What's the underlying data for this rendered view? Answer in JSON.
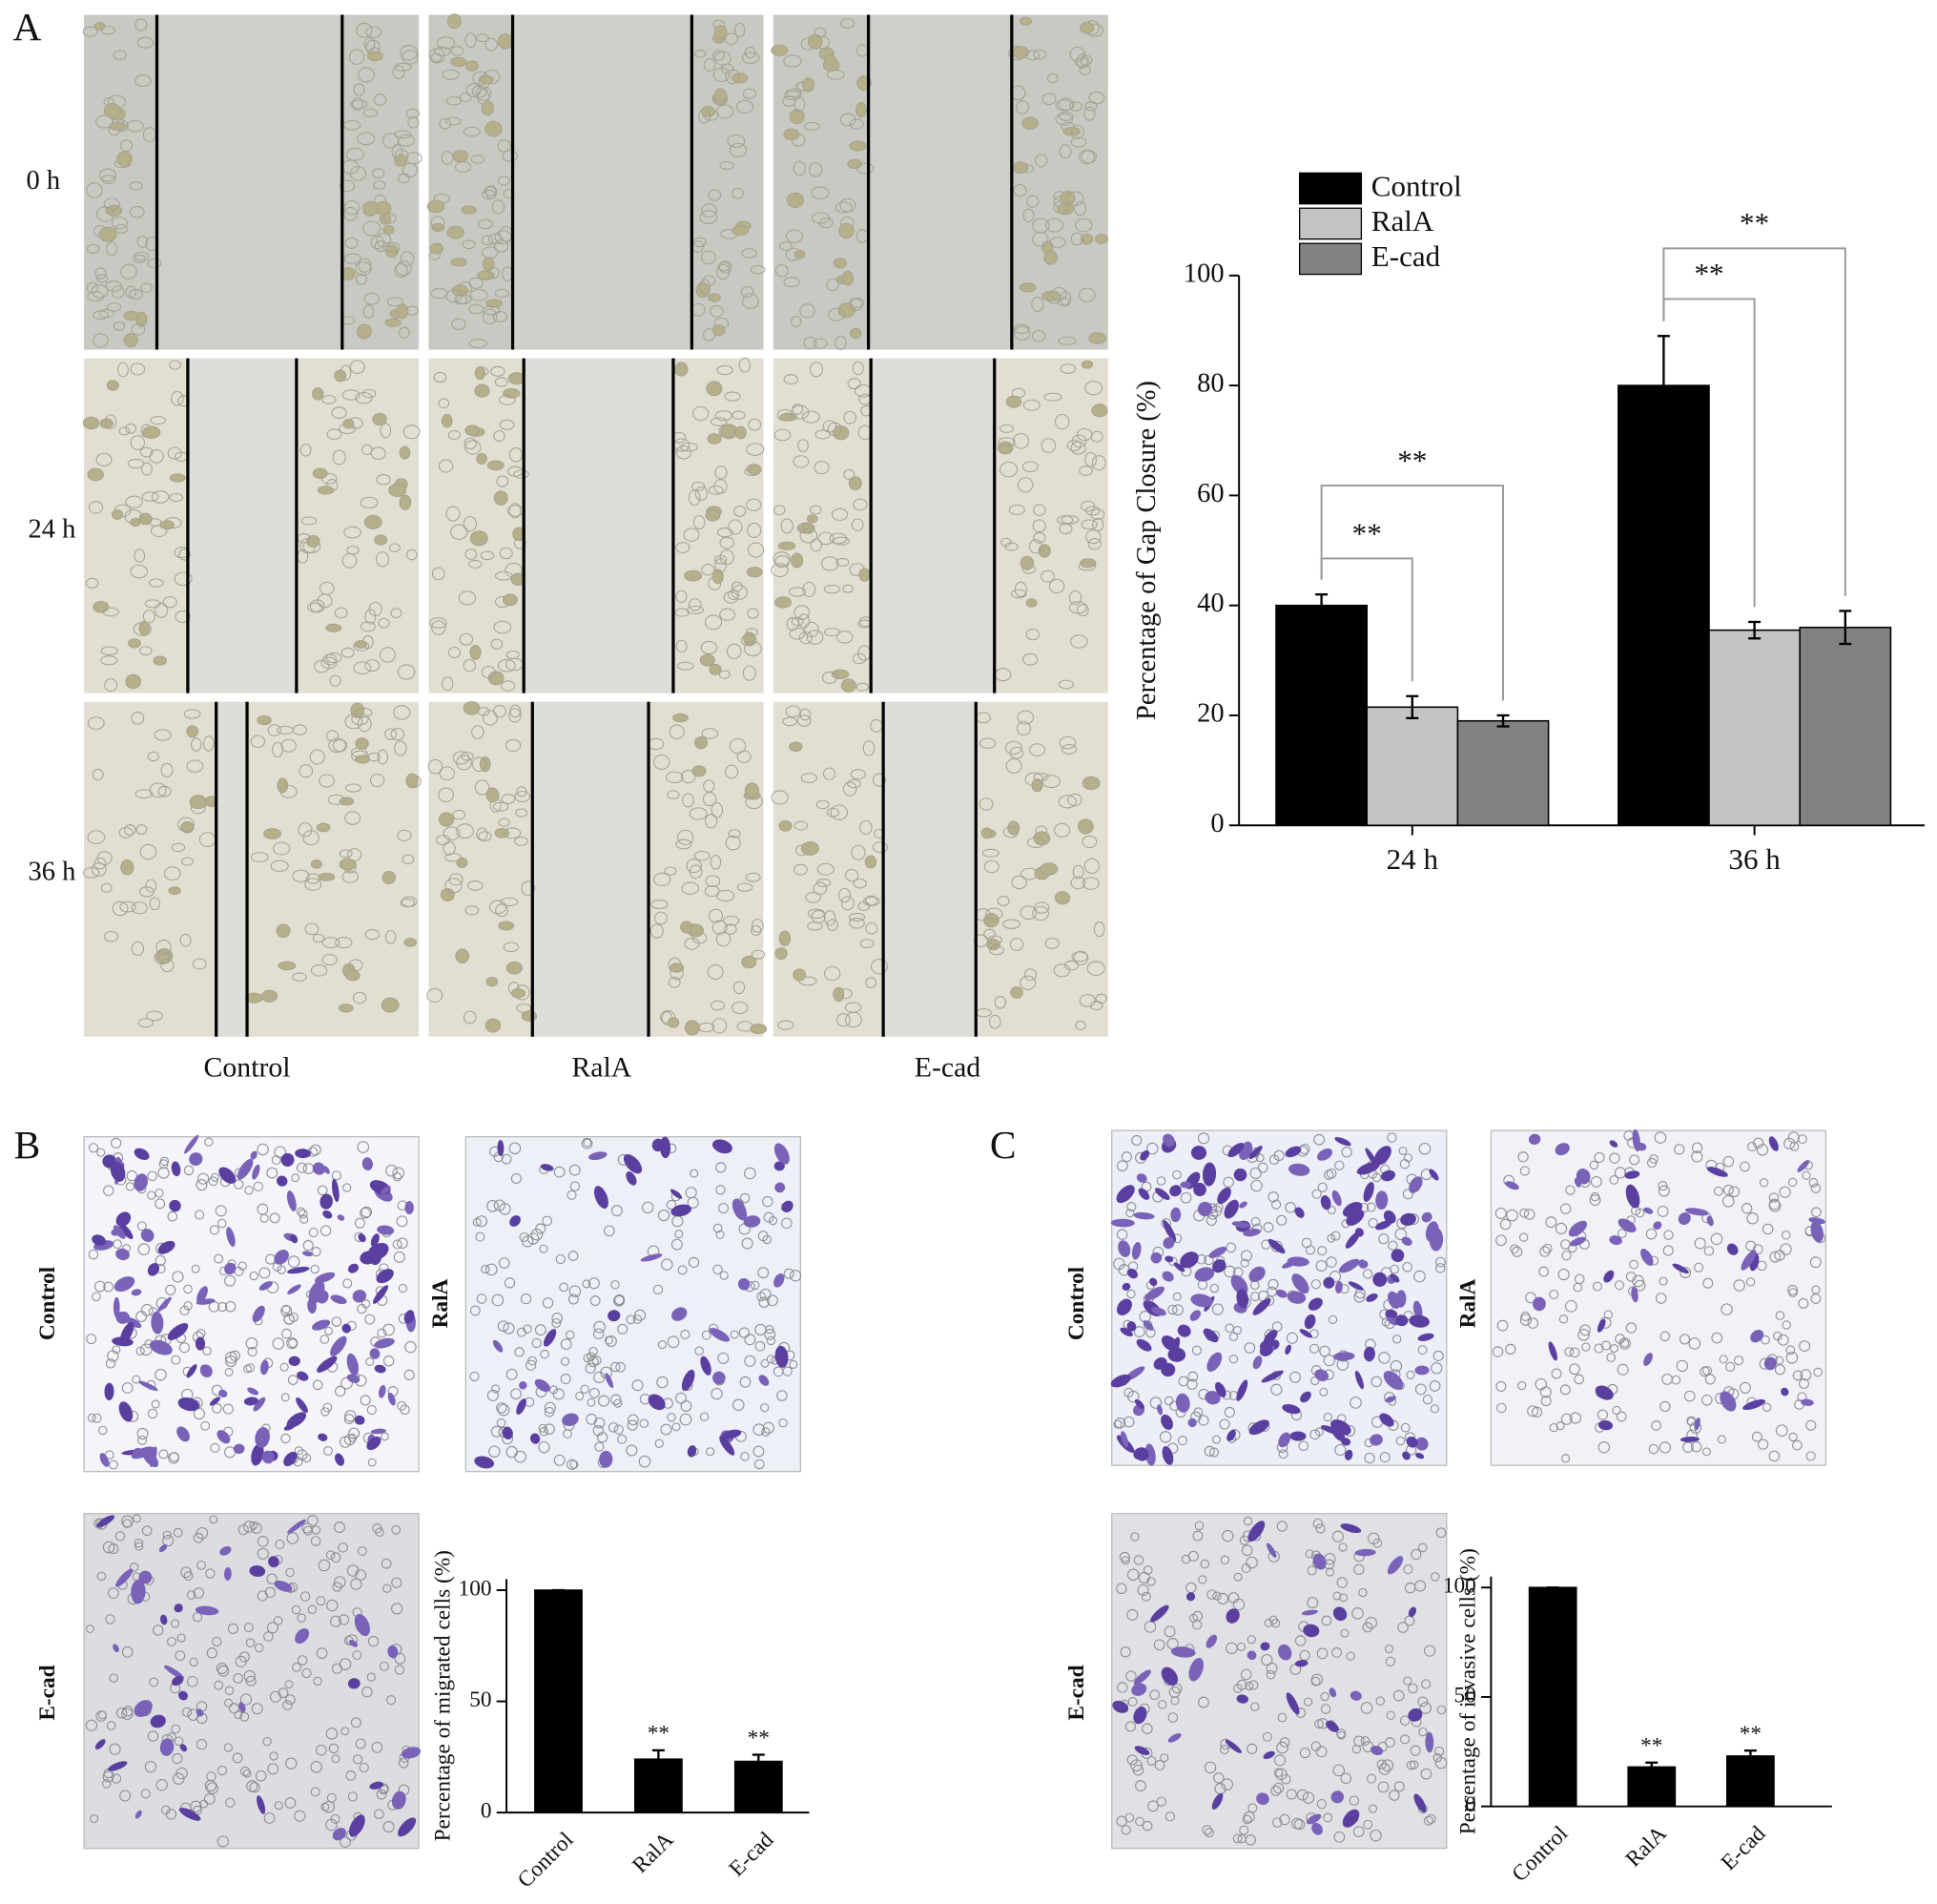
{
  "panel_labels": [
    "A",
    "B",
    "C"
  ],
  "panel_a": {
    "row_labels": [
      "0 h",
      "24 h",
      "36 h"
    ],
    "column_labels": [
      "Control",
      "RalA",
      "E-cad"
    ]
  },
  "panel_b": {
    "image_labels": [
      "Control",
      "RalA",
      "E-cad"
    ]
  },
  "panel_c": {
    "image_labels": [
      "Control",
      "RalA",
      "E-cad"
    ]
  },
  "chart_data": [
    {
      "type": "bar",
      "ylabel": "Percentage of Gap Closure (%)",
      "categories": [
        "24 h",
        "36 h"
      ],
      "series": [
        {
          "name": "Control",
          "color": "#000000",
          "values": [
            40,
            80
          ],
          "errors": [
            2,
            9
          ]
        },
        {
          "name": "RalA",
          "color": "#c4c4c4",
          "values": [
            21.5,
            35.5
          ],
          "errors": [
            2,
            1.5
          ]
        },
        {
          "name": "E-cad",
          "color": "#828282",
          "values": [
            19,
            36
          ],
          "errors": [
            1,
            3
          ]
        }
      ],
      "ylim": [
        0,
        100
      ],
      "yticks": [
        0,
        20,
        40,
        60,
        80,
        100
      ],
      "legend": "upper left",
      "annotations": [
        "**",
        "**",
        "**",
        "**"
      ]
    },
    {
      "type": "bar",
      "ylabel": "Percentage of migrated cells (%)",
      "categories": [
        "Control",
        "RalA",
        "E-cad"
      ],
      "values": [
        100,
        24,
        23
      ],
      "errors": [
        0,
        4,
        3
      ],
      "color": "#000000",
      "ylim": [
        0,
        105
      ],
      "yticks": [
        0,
        50,
        100
      ],
      "annotations": [
        "**",
        "**"
      ]
    },
    {
      "type": "bar",
      "ylabel": "Percentage of invasive cells (%)",
      "categories": [
        "Control",
        "RalA",
        "E-cad"
      ],
      "values": [
        100,
        18,
        23
      ],
      "errors": [
        0,
        2,
        2.5
      ],
      "color": "#000000",
      "ylim": [
        0,
        105
      ],
      "yticks": [
        0,
        50,
        100
      ],
      "annotations": [
        "**",
        "**"
      ]
    }
  ]
}
